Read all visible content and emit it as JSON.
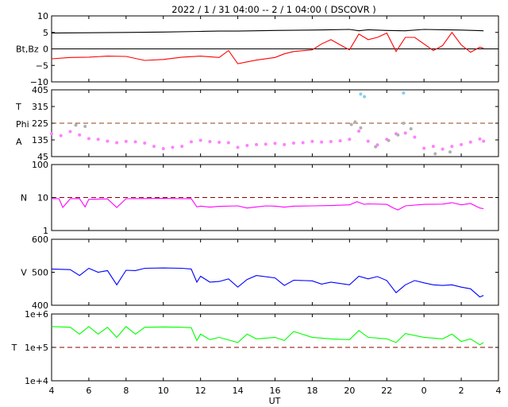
{
  "chart_data": {
    "type": "line",
    "title": "2022  /  1 / 31   04:00 --  2 /  1   04:00 ( DSCOVR )",
    "xlabel": "UT",
    "x_tick_labels": [
      "4",
      "6",
      "8",
      "10",
      "12",
      "14",
      "16",
      "18",
      "20",
      "22",
      "0",
      "2",
      "4"
    ],
    "panels": [
      {
        "id": "mag",
        "ylabel_lines": [
          "Bt,Bz"
        ],
        "ylim": [
          -10,
          10
        ],
        "y_ticks": [
          {
            "value": -10,
            "label": "−10"
          },
          {
            "value": -5,
            "label": "−5"
          },
          {
            "value": 0,
            "label": "0"
          },
          {
            "value": 5,
            "label": "5"
          },
          {
            "value": 10,
            "label": "10"
          }
        ],
        "reference_lines": [
          {
            "value": 0,
            "color": "#000000",
            "dash": false
          }
        ],
        "series": [
          {
            "key": "Bt",
            "color": "#000000",
            "style": "line",
            "x": [
              4,
              6,
              8,
              10,
              12,
              13,
              14,
              16,
              18,
              19,
              20,
              20.5,
              21,
              22,
              23,
              24,
              25,
              26,
              27.2
            ],
            "y": [
              4.8,
              4.9,
              5.0,
              5.1,
              5.3,
              5.4,
              5.4,
              5.6,
              5.7,
              5.8,
              5.9,
              5.5,
              5.8,
              5.6,
              5.5,
              5.9,
              5.8,
              5.7,
              5.5
            ]
          },
          {
            "key": "Bz",
            "color": "#ff0000",
            "style": "line",
            "x": [
              4,
              5,
              6,
              7,
              8,
              9,
              10,
              11,
              12,
              13,
              13.5,
              14,
              15,
              16,
              16.5,
              17,
              18,
              18.5,
              19,
              19.5,
              20,
              20.5,
              21,
              21.5,
              22,
              22.5,
              23,
              23.5,
              24,
              24.5,
              25,
              25.5,
              26,
              26.5,
              27,
              27.2
            ],
            "y": [
              -3,
              -2.6,
              -2.5,
              -2.2,
              -2.3,
              -3.5,
              -3.2,
              -2.5,
              -2.2,
              -2.6,
              -0.5,
              -4.5,
              -3.4,
              -2.6,
              -1.5,
              -0.8,
              -0.3,
              1.5,
              2.8,
              1.2,
              -0.3,
              4.5,
              2.8,
              3.5,
              4.8,
              -0.8,
              3.5,
              3.5,
              1.5,
              -0.5,
              1.0,
              5.0,
              1.2,
              -1.0,
              0.5,
              0.2
            ]
          }
        ]
      },
      {
        "id": "plasma_angle",
        "ylabel_lines": [
          "T",
          "Phi",
          "A"
        ],
        "ylim": [
          45,
          405
        ],
        "y_ticks": [
          {
            "value": 45,
            "label": "45"
          },
          {
            "value": 135,
            "label": "135"
          },
          {
            "value": 225,
            "label": "225"
          },
          {
            "value": 315,
            "label": "315"
          },
          {
            "value": 405,
            "label": "405"
          }
        ],
        "reference_lines": [
          {
            "value": 225,
            "color": "#8b4513",
            "dash": true
          }
        ],
        "series": [
          {
            "key": "A",
            "color": "#ff80ff",
            "style": "points",
            "x": [
              4,
              4.5,
              5,
              5.5,
              6,
              6.5,
              7,
              7.5,
              8,
              8.5,
              9,
              9.5,
              10,
              10.5,
              11,
              11.5,
              12,
              12.5,
              13,
              13.5,
              14,
              14.5,
              15,
              15.5,
              16,
              16.5,
              17,
              17.5,
              18,
              18.5,
              19,
              19.5,
              20,
              20.5,
              21,
              21.5,
              22,
              22.5,
              23,
              23.5,
              24,
              24.5,
              25,
              25.5,
              26,
              26.5,
              27,
              27.2
            ],
            "y": [
              168,
              158,
              180,
              162,
              142,
              138,
              128,
              120,
              127,
              125,
              118,
              100,
              88,
              95,
              100,
              125,
              133,
              126,
              122,
              120,
              95,
              105,
              110,
              112,
              116,
              110,
              118,
              120,
              127,
              123,
              126,
              130,
              138,
              182,
              128,
              108,
              138,
              168,
              172,
              150,
              90,
              100,
              85,
              100,
              110,
              123,
              140,
              128
            ]
          },
          {
            "key": "Phi",
            "color": "#b0b0b0",
            "style": "points",
            "x": [
              5.3,
              5.8,
              20.1,
              20.3,
              20.6,
              21.4,
              22.1,
              22.6,
              22.9,
              23.3,
              24.6,
              25.4
            ],
            "y": [
              215,
              208,
              218,
              232,
              200,
              98,
              132,
              162,
              225,
              195,
              60,
              70
            ]
          },
          {
            "key": "T",
            "color": "#87ceeb",
            "style": "points",
            "x": [
              20.6,
              20.8,
              22.9
            ],
            "y": [
              382,
              368,
              388
            ]
          }
        ]
      },
      {
        "id": "density",
        "ylabel_lines": [
          "N"
        ],
        "scale": "log",
        "ylim": [
          1,
          100
        ],
        "y_ticks": [
          {
            "value": 1,
            "label": "1"
          },
          {
            "value": 10,
            "label": "10"
          },
          {
            "value": 100,
            "label": "100"
          }
        ],
        "reference_lines": [
          {
            "value": 10,
            "color": "#8b0000",
            "dash": true
          }
        ],
        "series": [
          {
            "key": "N",
            "color": "#ff00ff",
            "style": "line",
            "x": [
              4,
              4.4,
              4.6,
              5,
              5.5,
              5.8,
              6,
              6.5,
              7,
              7.5,
              8,
              9,
              10,
              11,
              11.5,
              11.8,
              12,
              12.5,
              13,
              14,
              14.5,
              15,
              15.5,
              16,
              16.5,
              17,
              18,
              19,
              20,
              20.4,
              20.8,
              21,
              22,
              22.3,
              22.6,
              23,
              24,
              25,
              25.5,
              26,
              26.5,
              27,
              27.2
            ],
            "y": [
              9.3,
              9.2,
              5.0,
              9.2,
              9.3,
              5.2,
              8.8,
              9.0,
              9.1,
              5.0,
              9.2,
              9.3,
              9.4,
              9.2,
              9.3,
              5.2,
              5.5,
              5.1,
              5.4,
              5.6,
              4.8,
              5.2,
              5.6,
              5.5,
              5.1,
              5.5,
              5.6,
              5.7,
              6.0,
              7.5,
              6.2,
              6.4,
              6.2,
              5.0,
              4.2,
              5.6,
              6.2,
              6.3,
              7.0,
              6.0,
              6.6,
              4.8,
              4.6
            ]
          }
        ]
      },
      {
        "id": "velocity",
        "ylabel_lines": [
          "V"
        ],
        "ylim": [
          400,
          600
        ],
        "y_ticks": [
          {
            "value": 400,
            "label": "400"
          },
          {
            "value": 500,
            "label": "500"
          },
          {
            "value": 600,
            "label": "600"
          }
        ],
        "reference_lines": [],
        "series": [
          {
            "key": "V",
            "color": "#0000ff",
            "style": "line",
            "x": [
              4,
              5,
              5.5,
              6,
              6.5,
              7,
              7.5,
              8,
              8.5,
              9,
              10,
              11,
              11.5,
              11.8,
              12,
              12.5,
              13,
              13.5,
              14,
              14.5,
              15,
              16,
              16.5,
              17,
              18,
              18.5,
              19,
              20,
              20.5,
              21,
              21.5,
              22,
              22.5,
              23,
              23.5,
              24,
              24.5,
              25,
              25.5,
              26,
              26.5,
              27,
              27.2
            ],
            "y": [
              510,
              508,
              490,
              512,
              500,
              505,
              462,
              506,
              505,
              512,
              513,
              512,
              510,
              470,
              488,
              470,
              472,
              480,
              455,
              478,
              490,
              483,
              460,
              476,
              474,
              464,
              470,
              462,
              488,
              480,
              487,
              475,
              438,
              462,
              475,
              468,
              462,
              460,
              462,
              455,
              450,
              425,
              430
            ]
          }
        ]
      },
      {
        "id": "temperature",
        "ylabel_lines": [
          "T"
        ],
        "scale": "log",
        "ylim": [
          10000,
          1000000
        ],
        "y_ticks": [
          {
            "value": 10000,
            "label": "1e+4"
          },
          {
            "value": 100000,
            "label": "1e+5"
          },
          {
            "value": 1000000,
            "label": "1e+6"
          }
        ],
        "reference_lines": [
          {
            "value": 100000,
            "color": "#8b0000",
            "dash": true
          }
        ],
        "series": [
          {
            "key": "T",
            "color": "#00ff00",
            "style": "line",
            "x": [
              4,
              5,
              5.5,
              6,
              6.5,
              7,
              7.5,
              8,
              8.5,
              9,
              10,
              11,
              11.5,
              11.8,
              12,
              12.5,
              13,
              14,
              14.5,
              15,
              16,
              16.5,
              17,
              18,
              19,
              20,
              20.5,
              21,
              22,
              22.5,
              23,
              24,
              25,
              25.5,
              26,
              26.5,
              27,
              27.2
            ],
            "y": [
              420000,
              400000,
              250000,
              420000,
              250000,
              400000,
              200000,
              420000,
              250000,
              400000,
              410000,
              400000,
              390000,
              160000,
              250000,
              170000,
              200000,
              140000,
              250000,
              180000,
              200000,
              160000,
              300000,
              200000,
              180000,
              170000,
              320000,
              200000,
              180000,
              140000,
              260000,
              200000,
              180000,
              250000,
              150000,
              180000,
              120000,
              140000
            ]
          }
        ]
      }
    ]
  }
}
